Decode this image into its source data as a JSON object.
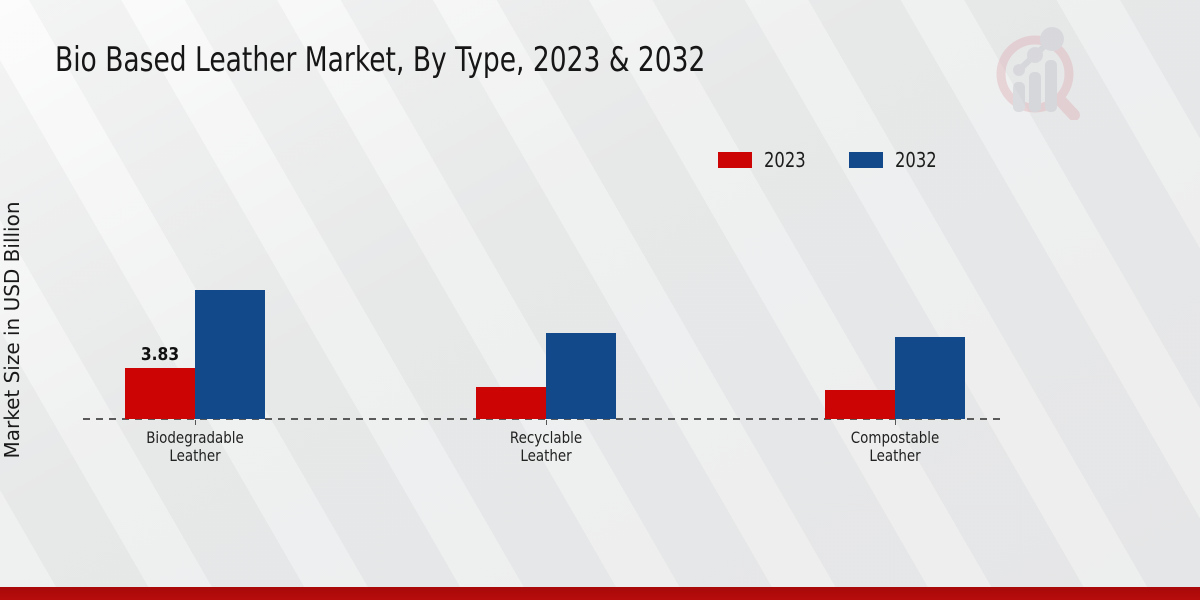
{
  "title": "Bio Based Leather Market, By Type, 2023 & 2032",
  "ylabel": "Market Size in USD Billion",
  "colors": {
    "series_2023": "#cc0404",
    "series_2032": "#11498a",
    "axis": "#5a5a5a",
    "footer_strip": "#b20b0b",
    "background": "#e8e9e9"
  },
  "legend": {
    "position": "top-right",
    "entries": [
      {
        "label": "2023",
        "color": "#cc0404"
      },
      {
        "label": "2032",
        "color": "#11498a"
      }
    ]
  },
  "chart_data": {
    "type": "bar",
    "title": "Bio Based Leather Market, By Type, 2023 & 2032",
    "xlabel": "",
    "ylabel": "Market Size in USD Billion",
    "categories": [
      "Biodegradable Leather",
      "Recyclable Leather",
      "Compostable Leather"
    ],
    "series": [
      {
        "name": "2023",
        "color": "#cc0404",
        "values": [
          3.83,
          2.4,
          2.2
        ]
      },
      {
        "name": "2032",
        "color": "#11498a",
        "values": [
          9.7,
          6.5,
          6.2
        ]
      }
    ],
    "data_label": {
      "series_index": 0,
      "category_index": 0,
      "text": "3.83"
    },
    "ylim": [
      0,
      10.5
    ],
    "grid": false,
    "axis_style": "dashed-baseline-only",
    "legend_position": "top-right"
  },
  "watermark": {
    "name": "market-research-magnifier-logo"
  }
}
